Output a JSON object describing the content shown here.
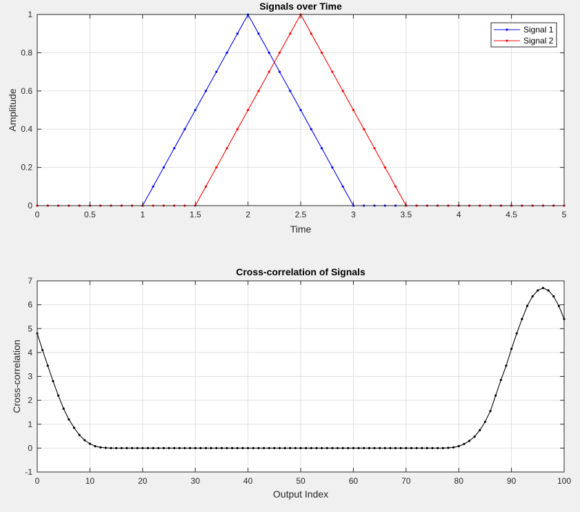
{
  "chart_data": [
    {
      "type": "line",
      "title": "Signals over Time",
      "xlabel": "Time",
      "ylabel": "Amplitude",
      "xlim": [
        0,
        5
      ],
      "ylim": [
        0,
        1
      ],
      "grid": true,
      "legend": "top-right",
      "xticks": [
        0,
        0.5,
        1,
        1.5,
        2,
        2.5,
        3,
        3.5,
        4,
        4.5,
        5
      ],
      "xtick_labels": [
        "0",
        "0.5",
        "1",
        "1.5",
        "2",
        "2.5",
        "3",
        "3.5",
        "4",
        "4.5",
        "5"
      ],
      "yticks": [
        0,
        0.2,
        0.4,
        0.6,
        0.8,
        1
      ],
      "ytick_labels": [
        "0",
        "0.2",
        "0.4",
        "0.6",
        "0.8",
        "1"
      ],
      "x": [
        0,
        0.1,
        0.2,
        0.3,
        0.4,
        0.5,
        0.6,
        0.7,
        0.8,
        0.9,
        1,
        1.1,
        1.2,
        1.3,
        1.4,
        1.5,
        1.6,
        1.7,
        1.8,
        1.9,
        2,
        2.1,
        2.2,
        2.3,
        2.4,
        2.5,
        2.6,
        2.7,
        2.8,
        2.9,
        3,
        3.1,
        3.2,
        3.3,
        3.4,
        3.5,
        3.6,
        3.7,
        3.8,
        3.9,
        4,
        4.1,
        4.2,
        4.3,
        4.4,
        4.5,
        4.6,
        4.7,
        4.8,
        4.9,
        5
      ],
      "series": [
        {
          "name": "Signal 1",
          "color": "#0000ff",
          "values": [
            0,
            0,
            0,
            0,
            0,
            0,
            0,
            0,
            0,
            0,
            0,
            0.1,
            0.2,
            0.3,
            0.4,
            0.5,
            0.6,
            0.7,
            0.8,
            0.9,
            1,
            0.9,
            0.8,
            0.7,
            0.6,
            0.5,
            0.4,
            0.3,
            0.2,
            0.1,
            0,
            0,
            0,
            0,
            0,
            0,
            0,
            0,
            0,
            0,
            0,
            0,
            0,
            0,
            0,
            0,
            0,
            0,
            0,
            0,
            0
          ]
        },
        {
          "name": "Signal 2",
          "color": "#ff0000",
          "values": [
            0,
            0,
            0,
            0,
            0,
            0,
            0,
            0,
            0,
            0,
            0,
            0,
            0,
            0,
            0,
            0,
            0.1,
            0.2,
            0.3,
            0.4,
            0.5,
            0.6,
            0.7,
            0.8,
            0.9,
            1,
            0.9,
            0.8,
            0.7,
            0.6,
            0.5,
            0.4,
            0.3,
            0.2,
            0.1,
            0,
            0,
            0,
            0,
            0,
            0,
            0,
            0,
            0,
            0,
            0,
            0,
            0,
            0,
            0,
            0
          ]
        }
      ]
    },
    {
      "type": "line",
      "title": "Cross-correlation of Signals",
      "xlabel": "Output Index",
      "ylabel": "Cross-correlation",
      "xlim": [
        0,
        100
      ],
      "ylim": [
        -1,
        7
      ],
      "grid": true,
      "xticks": [
        0,
        10,
        20,
        30,
        40,
        50,
        60,
        70,
        80,
        90,
        100
      ],
      "xtick_labels": [
        "0",
        "10",
        "20",
        "30",
        "40",
        "50",
        "60",
        "70",
        "80",
        "90",
        "100"
      ],
      "yticks": [
        -1,
        0,
        1,
        2,
        3,
        4,
        5,
        6,
        7
      ],
      "ytick_labels": [
        "-1",
        "0",
        "1",
        "2",
        "3",
        "4",
        "5",
        "6",
        "7"
      ],
      "x": [
        0,
        1,
        2,
        3,
        4,
        5,
        6,
        7,
        8,
        9,
        10,
        11,
        12,
        13,
        14,
        15,
        16,
        17,
        18,
        19,
        20,
        21,
        22,
        23,
        24,
        25,
        26,
        27,
        28,
        29,
        30,
        31,
        32,
        33,
        34,
        35,
        36,
        37,
        38,
        39,
        40,
        41,
        42,
        43,
        44,
        45,
        46,
        47,
        48,
        49,
        50,
        51,
        52,
        53,
        54,
        55,
        56,
        57,
        58,
        59,
        60,
        61,
        62,
        63,
        64,
        65,
        66,
        67,
        68,
        69,
        70,
        71,
        72,
        73,
        74,
        75,
        76,
        77,
        78,
        79,
        80,
        81,
        82,
        83,
        84,
        85,
        86,
        87,
        88,
        89,
        90,
        91,
        92,
        93,
        94,
        95,
        96,
        97,
        98,
        99,
        100
      ],
      "series": [
        {
          "color": "#000000",
          "values": [
            4.8,
            4.1,
            3.45,
            2.8,
            2.2,
            1.65,
            1.2,
            0.85,
            0.55,
            0.33,
            0.18,
            0.08,
            0.03,
            0.01,
            0,
            0,
            0,
            0,
            0,
            0,
            0,
            0,
            0,
            0,
            0,
            0,
            0,
            0,
            0,
            0,
            0,
            0,
            0,
            0,
            0,
            0,
            0,
            0,
            0,
            0,
            0,
            0,
            0,
            0,
            0,
            0,
            0,
            0,
            0,
            0,
            0,
            0,
            0,
            0,
            0,
            0,
            0,
            0,
            0,
            0,
            0,
            0,
            0,
            0,
            0,
            0,
            0,
            0,
            0,
            0,
            0,
            0,
            0,
            0,
            0,
            0,
            0,
            0,
            0.01,
            0.03,
            0.08,
            0.17,
            0.3,
            0.48,
            0.75,
            1.1,
            1.55,
            2.2,
            2.85,
            3.45,
            4.15,
            4.8,
            5.4,
            5.95,
            6.35,
            6.6,
            6.7,
            6.6,
            6.35,
            5.95,
            5.4
          ]
        }
      ]
    }
  ]
}
